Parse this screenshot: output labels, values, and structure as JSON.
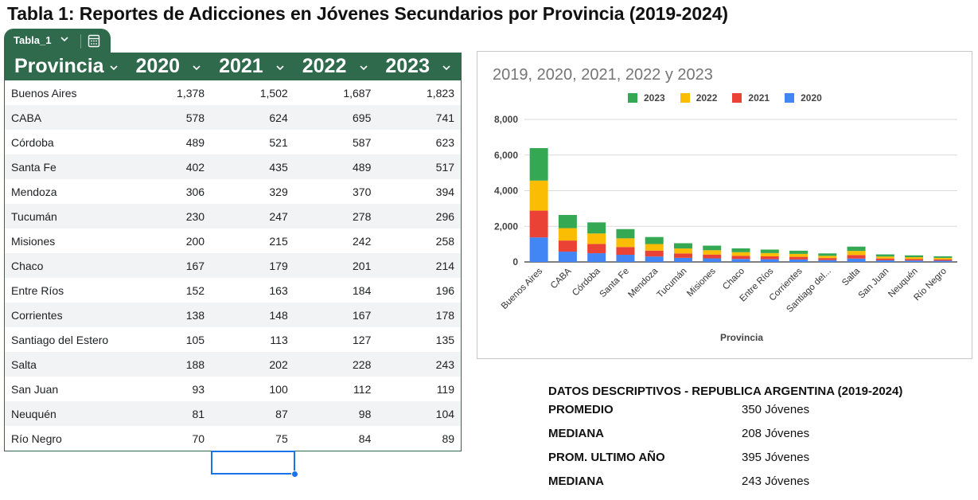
{
  "page": {
    "title": "Tabla 1: Reportes de Adicciones en Jóvenes Secundarios por Provincia (2019-2024)"
  },
  "table": {
    "tab_name": "Tabla_1",
    "headers": [
      "Provincia",
      "2020",
      "2021",
      "2022",
      "2023"
    ],
    "rows": [
      [
        "Buenos Aires",
        "1,378",
        "1,502",
        "1,687",
        "1,823"
      ],
      [
        "CABA",
        "578",
        "624",
        "695",
        "741"
      ],
      [
        "Córdoba",
        "489",
        "521",
        "587",
        "623"
      ],
      [
        "Santa Fe",
        "402",
        "435",
        "489",
        "517"
      ],
      [
        "Mendoza",
        "306",
        "329",
        "370",
        "394"
      ],
      [
        "Tucumán",
        "230",
        "247",
        "278",
        "296"
      ],
      [
        "Misiones",
        "200",
        "215",
        "242",
        "258"
      ],
      [
        "Chaco",
        "167",
        "179",
        "201",
        "214"
      ],
      [
        "Entre Ríos",
        "152",
        "163",
        "184",
        "196"
      ],
      [
        "Corrientes",
        "138",
        "148",
        "167",
        "178"
      ],
      [
        "Santiago del Estero",
        "105",
        "113",
        "127",
        "135"
      ],
      [
        "Salta",
        "188",
        "202",
        "228",
        "243"
      ],
      [
        "San Juan",
        "93",
        "100",
        "112",
        "119"
      ],
      [
        "Neuquén",
        "81",
        "87",
        "98",
        "104"
      ],
      [
        "Río Negro",
        "70",
        "75",
        "84",
        "89"
      ]
    ],
    "header_color": "#2f6a4c"
  },
  "chart_data": {
    "type": "bar",
    "stacked": true,
    "title": "2019, 2020, 2021, 2022 y 2023",
    "xlabel": "Provincia",
    "ylabel": "",
    "ylim": [
      0,
      8000
    ],
    "yticks": [
      "0",
      "2,000",
      "4,000",
      "6,000",
      "8,000"
    ],
    "categories": [
      "Buenos Aires",
      "CABA",
      "Córdoba",
      "Santa Fe",
      "Mendoza",
      "Tucumán",
      "Misiones",
      "Chaco",
      "Entre Ríos",
      "Corrientes",
      "Santiago del...",
      "Salta",
      "San Juan",
      "Neuquén",
      "Río Negro"
    ],
    "series": [
      {
        "name": "2020",
        "color": "#4285f4",
        "values": [
          1378,
          578,
          489,
          402,
          306,
          230,
          200,
          167,
          152,
          138,
          105,
          188,
          93,
          81,
          70
        ]
      },
      {
        "name": "2021",
        "color": "#ea4335",
        "values": [
          1502,
          624,
          521,
          435,
          329,
          247,
          215,
          179,
          163,
          148,
          113,
          202,
          100,
          87,
          75
        ]
      },
      {
        "name": "2022",
        "color": "#fbbc04",
        "values": [
          1687,
          695,
          587,
          489,
          370,
          278,
          242,
          201,
          184,
          167,
          127,
          228,
          112,
          98,
          84
        ]
      },
      {
        "name": "2023",
        "color": "#34a853",
        "values": [
          1823,
          741,
          623,
          517,
          394,
          296,
          258,
          214,
          196,
          178,
          135,
          243,
          119,
          104,
          89
        ]
      }
    ],
    "legend_order": [
      "2023",
      "2022",
      "2021",
      "2020"
    ],
    "legend_position": "top",
    "grid": true
  },
  "stats": {
    "title": "DATOS DESCRIPTIVOS - REPUBLICA ARGENTINA  (2019-2024)",
    "rows": [
      {
        "label": "PROMEDIO",
        "value": "350 Jóvenes"
      },
      {
        "label": "MEDIANA",
        "value": "208 Jóvenes"
      },
      {
        "label": "PROM. ULTIMO AÑO",
        "value": "395 Jóvenes"
      },
      {
        "label": "MEDIANA",
        "value": "243 Jóvenes"
      }
    ]
  }
}
